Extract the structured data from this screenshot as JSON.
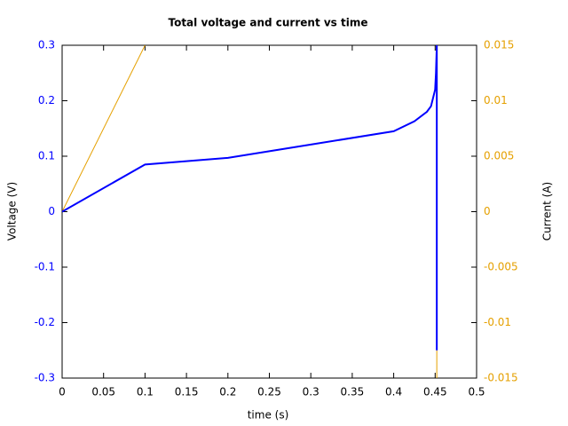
{
  "chart_data": {
    "type": "line",
    "title": "Total voltage and current vs time",
    "xlabel": "time (s)",
    "ylabel": "Voltage (V)",
    "y2label": "Current (A)",
    "x": [
      0,
      0.1,
      0.2,
      0.3,
      0.4,
      0.425,
      0.44,
      0.445,
      0.45,
      0.451,
      0.452,
      0.452
    ],
    "series": [
      {
        "name": "Voltage",
        "color": "#0000ff",
        "axis": "y",
        "values": [
          0,
          0.085,
          0.097,
          0.121,
          0.145,
          0.163,
          0.18,
          0.19,
          0.22,
          0.25,
          0.3,
          -0.25
        ]
      },
      {
        "name": "Current",
        "color": "#e5a000",
        "axis": "y2",
        "values": [
          0,
          0.015,
          null,
          null,
          null,
          null,
          null,
          null,
          null,
          null,
          -0.0125,
          -0.015
        ]
      }
    ],
    "xlim": [
      0,
      0.5
    ],
    "xticks": [
      0,
      0.05,
      0.1,
      0.15,
      0.2,
      0.25,
      0.3,
      0.35,
      0.4,
      0.45,
      0.5
    ],
    "ylim": [
      -0.3,
      0.3
    ],
    "yticks": [
      -0.3,
      -0.2,
      -0.1,
      0,
      0.1,
      0.2,
      0.3
    ],
    "y2lim": [
      -0.015,
      0.015
    ],
    "y2ticks": [
      -0.015,
      -0.01,
      -0.005,
      0,
      0.005,
      0.01,
      0.015
    ],
    "grid": false
  }
}
